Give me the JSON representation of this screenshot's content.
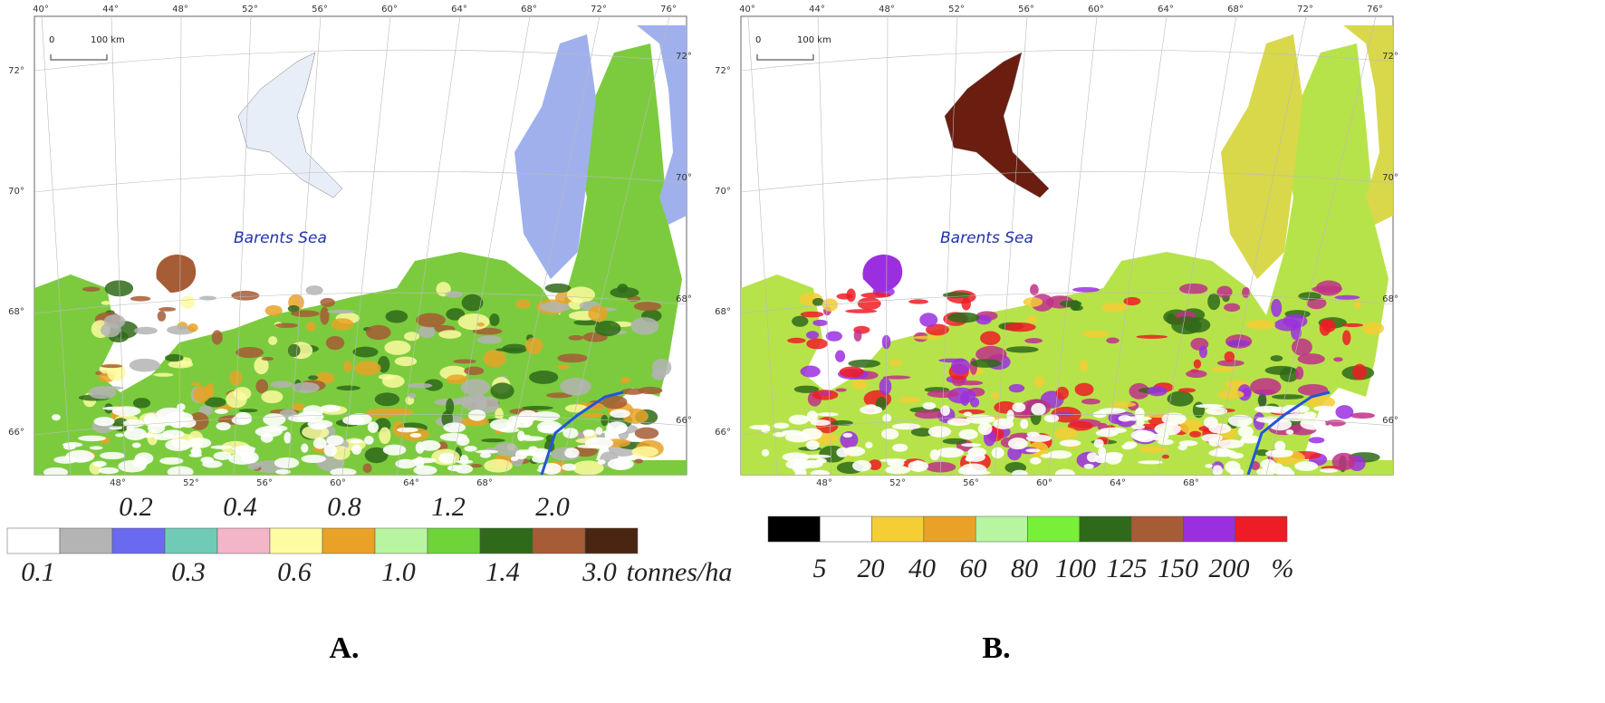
{
  "panels": [
    {
      "label": "A.",
      "top_lon_labels": [
        "40°",
        "44°",
        "48°",
        "52°",
        "56°",
        "60°",
        "64°",
        "68°",
        "72°",
        "76°"
      ],
      "bottom_lon_labels": [
        "48°",
        "52°",
        "56°",
        "60°",
        "64°",
        "68°"
      ],
      "left_lat_labels": [
        "72°",
        "70°",
        "68°",
        "66°"
      ],
      "right_lat_labels": [
        "72°",
        "70°",
        "68°",
        "66°"
      ],
      "scale_bar": {
        "start": "0",
        "end": "100 km"
      },
      "sea_label": "Barents Sea",
      "legend": {
        "upper_labels": [
          "0.2",
          "0.4",
          "0.8",
          "1.2",
          "2.0"
        ],
        "lower_labels": [
          "0.1",
          "0.3",
          "0.6",
          "1.0",
          "1.4",
          "3.0"
        ],
        "unit": "tonnes/ha",
        "colors": [
          "#ffffff",
          "#b4b4b4",
          "#6a6af0",
          "#6fcab6",
          "#f2b6c8",
          "#fdfca0",
          "#e9a227",
          "#b8f5a0",
          "#6fd33a",
          "#2f6a1a",
          "#a65c35",
          "#4a2612"
        ]
      }
    },
    {
      "label": "B.",
      "top_lon_labels": [
        "40°",
        "44°",
        "48°",
        "52°",
        "56°",
        "60°",
        "64°",
        "68°",
        "72°",
        "76°"
      ],
      "bottom_lon_labels": [
        "48°",
        "52°",
        "56°",
        "60°",
        "64°",
        "68°"
      ],
      "left_lat_labels": [
        "72°",
        "70°",
        "68°",
        "66°"
      ],
      "right_lat_labels": [
        "72°",
        "70°",
        "68°",
        "66°"
      ],
      "scale_bar": {
        "start": "0",
        "end": "100 km"
      },
      "sea_label": "Barents Sea",
      "legend": {
        "labels": [
          "5",
          "20",
          "40",
          "60",
          "80",
          "100",
          "125",
          "150",
          "200"
        ],
        "unit": "%",
        "colors": [
          "#000000",
          "#ffffff",
          "#f5cd35",
          "#e9a227",
          "#b8f5a0",
          "#78f03a",
          "#2f6a1a",
          "#a65c35",
          "#9b2fe0",
          "#ee1c24"
        ]
      }
    }
  ]
}
